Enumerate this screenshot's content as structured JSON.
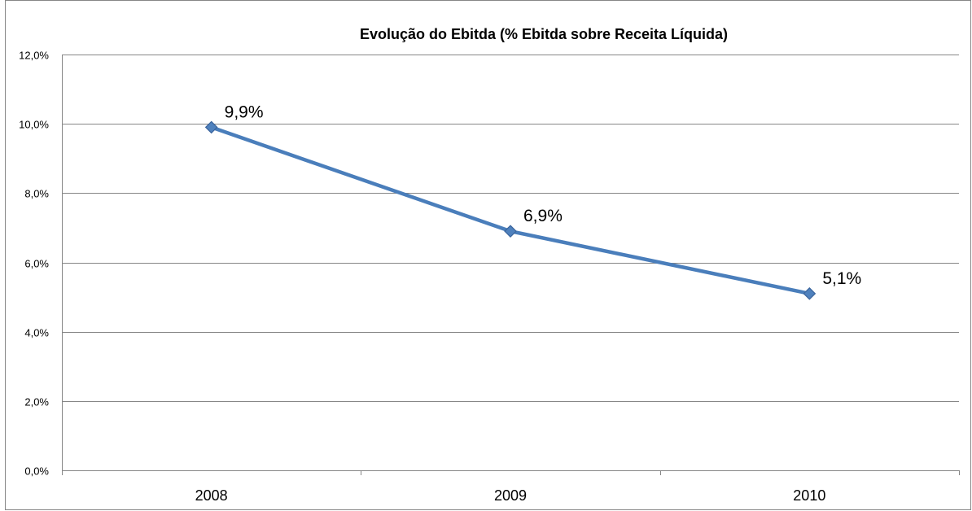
{
  "chart_data": {
    "type": "line",
    "title": "Evolução do Ebitda (% Ebitda sobre Receita Líquida)",
    "xlabel": "",
    "ylabel": "",
    "categories": [
      "2008",
      "2009",
      "2010"
    ],
    "series": [
      {
        "values": [
          9.9,
          6.9,
          5.1
        ],
        "labels": [
          "9,9%",
          "6,9%",
          "5,1%"
        ],
        "color": "#4a7ebb",
        "marker": "diamond"
      }
    ],
    "ylim": [
      0,
      12
    ],
    "y_ticks": [
      0,
      2,
      4,
      6,
      8,
      10,
      12
    ],
    "y_tick_labels": [
      "0,0%",
      "2,0%",
      "4,0%",
      "6,0%",
      "8,0%",
      "10,0%",
      "12,0%"
    ],
    "grid": true,
    "legend": "none",
    "colors": {
      "gridline": "#868686",
      "border": "#868686",
      "marker_fill": "#4f81bd",
      "marker_stroke": "#3a649c"
    }
  }
}
